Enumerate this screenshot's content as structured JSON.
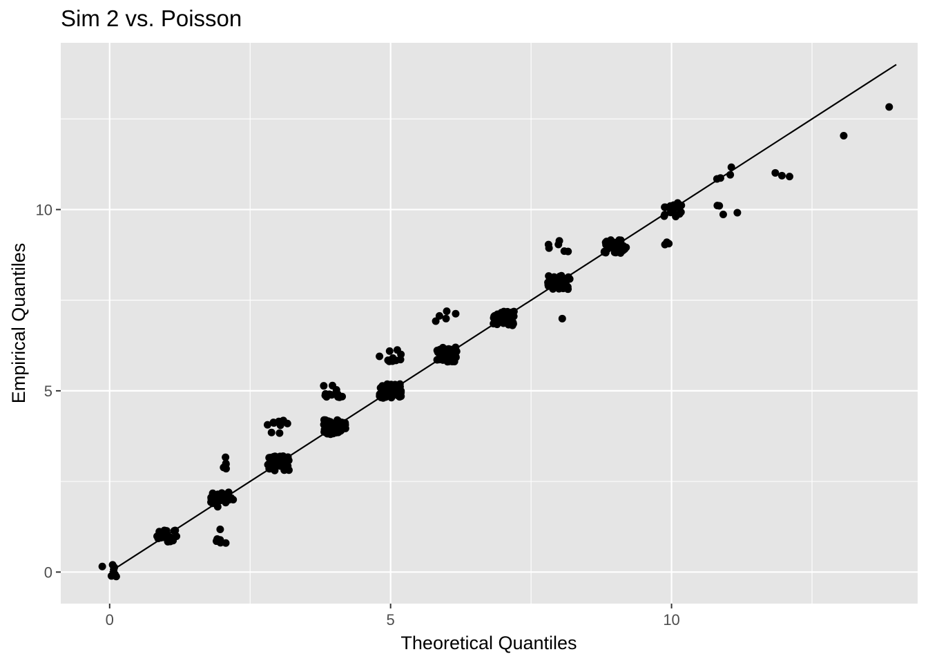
{
  "chart_data": {
    "type": "scatter",
    "title": "Sim 2 vs. Poisson",
    "xlabel": "Theoretical Quantiles",
    "ylabel": "Empirical Quantiles",
    "xlim": [
      -0.87,
      14.38
    ],
    "ylim": [
      -0.87,
      14.6
    ],
    "x_ticks": [
      0,
      5,
      10
    ],
    "x_tick_labels": [
      "0",
      "5",
      "10"
    ],
    "y_ticks": [
      0,
      5,
      10
    ],
    "y_tick_labels": [
      "0",
      "5",
      "10"
    ],
    "grid": true,
    "panel_background": "#e5e5e5",
    "grid_color": "#ffffff",
    "point_color": "#000000",
    "reference_line": {
      "from": [
        0,
        0
      ],
      "to": [
        14,
        14
      ],
      "color": "#000000"
    },
    "series": [
      {
        "clusters": [
          {
            "x": 0,
            "y": 0,
            "n": 8
          },
          {
            "x": 1,
            "y": 1,
            "n": 20
          },
          {
            "x": 2,
            "y": 1,
            "n": 6
          },
          {
            "x": 2,
            "y": 2,
            "n": 30
          },
          {
            "x": 2,
            "y": 3,
            "n": 5
          },
          {
            "x": 3,
            "y": 3,
            "n": 45
          },
          {
            "x": 3,
            "y": 4,
            "n": 10
          },
          {
            "x": 4,
            "y": 4,
            "n": 50
          },
          {
            "x": 4,
            "y": 5,
            "n": 12
          },
          {
            "x": 5,
            "y": 5,
            "n": 50
          },
          {
            "x": 5,
            "y": 6,
            "n": 10
          },
          {
            "x": 6,
            "y": 6,
            "n": 45
          },
          {
            "x": 6,
            "y": 7,
            "n": 5
          },
          {
            "x": 7,
            "y": 7,
            "n": 45
          },
          {
            "x": 8,
            "y": 7,
            "n": 1
          },
          {
            "x": 8,
            "y": 8,
            "n": 35
          },
          {
            "x": 8,
            "y": 9,
            "n": 6
          },
          {
            "x": 9,
            "y": 9,
            "n": 30
          },
          {
            "x": 10,
            "y": 9,
            "n": 3
          },
          {
            "x": 10,
            "y": 10,
            "n": 14
          },
          {
            "x": 11,
            "y": 10,
            "n": 4
          },
          {
            "x": 11,
            "y": 11,
            "n": 4
          },
          {
            "x": 12,
            "y": 11,
            "n": 3
          },
          {
            "x": 13,
            "y": 12,
            "n": 1
          },
          {
            "x": 14,
            "y": 13,
            "n": 1
          }
        ]
      }
    ]
  }
}
